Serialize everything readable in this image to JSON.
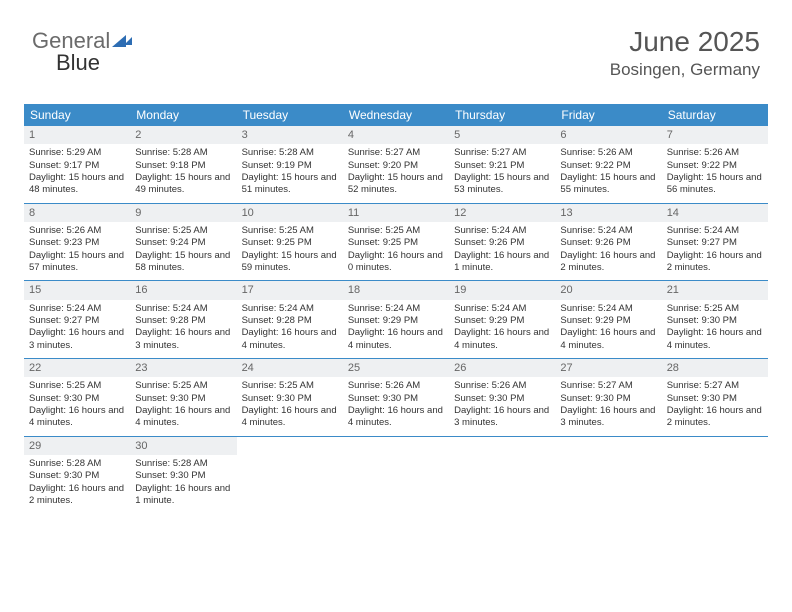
{
  "logo": {
    "text1": "General",
    "text2": "Blue"
  },
  "header": {
    "title": "June 2025",
    "location": "Bosingen, Germany"
  },
  "colors": {
    "header_bg": "#3b8bc8",
    "header_text": "#ffffff",
    "daynum_bg": "#eef0f2",
    "daynum_text": "#666666",
    "body_text": "#333333",
    "title_text": "#555555",
    "divider": "#3b8bc8"
  },
  "daysOfWeek": [
    "Sunday",
    "Monday",
    "Tuesday",
    "Wednesday",
    "Thursday",
    "Friday",
    "Saturday"
  ],
  "weeks": [
    [
      {
        "n": "1",
        "sr": "Sunrise: 5:29 AM",
        "ss": "Sunset: 9:17 PM",
        "dl": "Daylight: 15 hours and 48 minutes."
      },
      {
        "n": "2",
        "sr": "Sunrise: 5:28 AM",
        "ss": "Sunset: 9:18 PM",
        "dl": "Daylight: 15 hours and 49 minutes."
      },
      {
        "n": "3",
        "sr": "Sunrise: 5:28 AM",
        "ss": "Sunset: 9:19 PM",
        "dl": "Daylight: 15 hours and 51 minutes."
      },
      {
        "n": "4",
        "sr": "Sunrise: 5:27 AM",
        "ss": "Sunset: 9:20 PM",
        "dl": "Daylight: 15 hours and 52 minutes."
      },
      {
        "n": "5",
        "sr": "Sunrise: 5:27 AM",
        "ss": "Sunset: 9:21 PM",
        "dl": "Daylight: 15 hours and 53 minutes."
      },
      {
        "n": "6",
        "sr": "Sunrise: 5:26 AM",
        "ss": "Sunset: 9:22 PM",
        "dl": "Daylight: 15 hours and 55 minutes."
      },
      {
        "n": "7",
        "sr": "Sunrise: 5:26 AM",
        "ss": "Sunset: 9:22 PM",
        "dl": "Daylight: 15 hours and 56 minutes."
      }
    ],
    [
      {
        "n": "8",
        "sr": "Sunrise: 5:26 AM",
        "ss": "Sunset: 9:23 PM",
        "dl": "Daylight: 15 hours and 57 minutes."
      },
      {
        "n": "9",
        "sr": "Sunrise: 5:25 AM",
        "ss": "Sunset: 9:24 PM",
        "dl": "Daylight: 15 hours and 58 minutes."
      },
      {
        "n": "10",
        "sr": "Sunrise: 5:25 AM",
        "ss": "Sunset: 9:25 PM",
        "dl": "Daylight: 15 hours and 59 minutes."
      },
      {
        "n": "11",
        "sr": "Sunrise: 5:25 AM",
        "ss": "Sunset: 9:25 PM",
        "dl": "Daylight: 16 hours and 0 minutes."
      },
      {
        "n": "12",
        "sr": "Sunrise: 5:24 AM",
        "ss": "Sunset: 9:26 PM",
        "dl": "Daylight: 16 hours and 1 minute."
      },
      {
        "n": "13",
        "sr": "Sunrise: 5:24 AM",
        "ss": "Sunset: 9:26 PM",
        "dl": "Daylight: 16 hours and 2 minutes."
      },
      {
        "n": "14",
        "sr": "Sunrise: 5:24 AM",
        "ss": "Sunset: 9:27 PM",
        "dl": "Daylight: 16 hours and 2 minutes."
      }
    ],
    [
      {
        "n": "15",
        "sr": "Sunrise: 5:24 AM",
        "ss": "Sunset: 9:27 PM",
        "dl": "Daylight: 16 hours and 3 minutes."
      },
      {
        "n": "16",
        "sr": "Sunrise: 5:24 AM",
        "ss": "Sunset: 9:28 PM",
        "dl": "Daylight: 16 hours and 3 minutes."
      },
      {
        "n": "17",
        "sr": "Sunrise: 5:24 AM",
        "ss": "Sunset: 9:28 PM",
        "dl": "Daylight: 16 hours and 4 minutes."
      },
      {
        "n": "18",
        "sr": "Sunrise: 5:24 AM",
        "ss": "Sunset: 9:29 PM",
        "dl": "Daylight: 16 hours and 4 minutes."
      },
      {
        "n": "19",
        "sr": "Sunrise: 5:24 AM",
        "ss": "Sunset: 9:29 PM",
        "dl": "Daylight: 16 hours and 4 minutes."
      },
      {
        "n": "20",
        "sr": "Sunrise: 5:24 AM",
        "ss": "Sunset: 9:29 PM",
        "dl": "Daylight: 16 hours and 4 minutes."
      },
      {
        "n": "21",
        "sr": "Sunrise: 5:25 AM",
        "ss": "Sunset: 9:30 PM",
        "dl": "Daylight: 16 hours and 4 minutes."
      }
    ],
    [
      {
        "n": "22",
        "sr": "Sunrise: 5:25 AM",
        "ss": "Sunset: 9:30 PM",
        "dl": "Daylight: 16 hours and 4 minutes."
      },
      {
        "n": "23",
        "sr": "Sunrise: 5:25 AM",
        "ss": "Sunset: 9:30 PM",
        "dl": "Daylight: 16 hours and 4 minutes."
      },
      {
        "n": "24",
        "sr": "Sunrise: 5:25 AM",
        "ss": "Sunset: 9:30 PM",
        "dl": "Daylight: 16 hours and 4 minutes."
      },
      {
        "n": "25",
        "sr": "Sunrise: 5:26 AM",
        "ss": "Sunset: 9:30 PM",
        "dl": "Daylight: 16 hours and 4 minutes."
      },
      {
        "n": "26",
        "sr": "Sunrise: 5:26 AM",
        "ss": "Sunset: 9:30 PM",
        "dl": "Daylight: 16 hours and 3 minutes."
      },
      {
        "n": "27",
        "sr": "Sunrise: 5:27 AM",
        "ss": "Sunset: 9:30 PM",
        "dl": "Daylight: 16 hours and 3 minutes."
      },
      {
        "n": "28",
        "sr": "Sunrise: 5:27 AM",
        "ss": "Sunset: 9:30 PM",
        "dl": "Daylight: 16 hours and 2 minutes."
      }
    ],
    [
      {
        "n": "29",
        "sr": "Sunrise: 5:28 AM",
        "ss": "Sunset: 9:30 PM",
        "dl": "Daylight: 16 hours and 2 minutes."
      },
      {
        "n": "30",
        "sr": "Sunrise: 5:28 AM",
        "ss": "Sunset: 9:30 PM",
        "dl": "Daylight: 16 hours and 1 minute."
      },
      null,
      null,
      null,
      null,
      null
    ]
  ]
}
